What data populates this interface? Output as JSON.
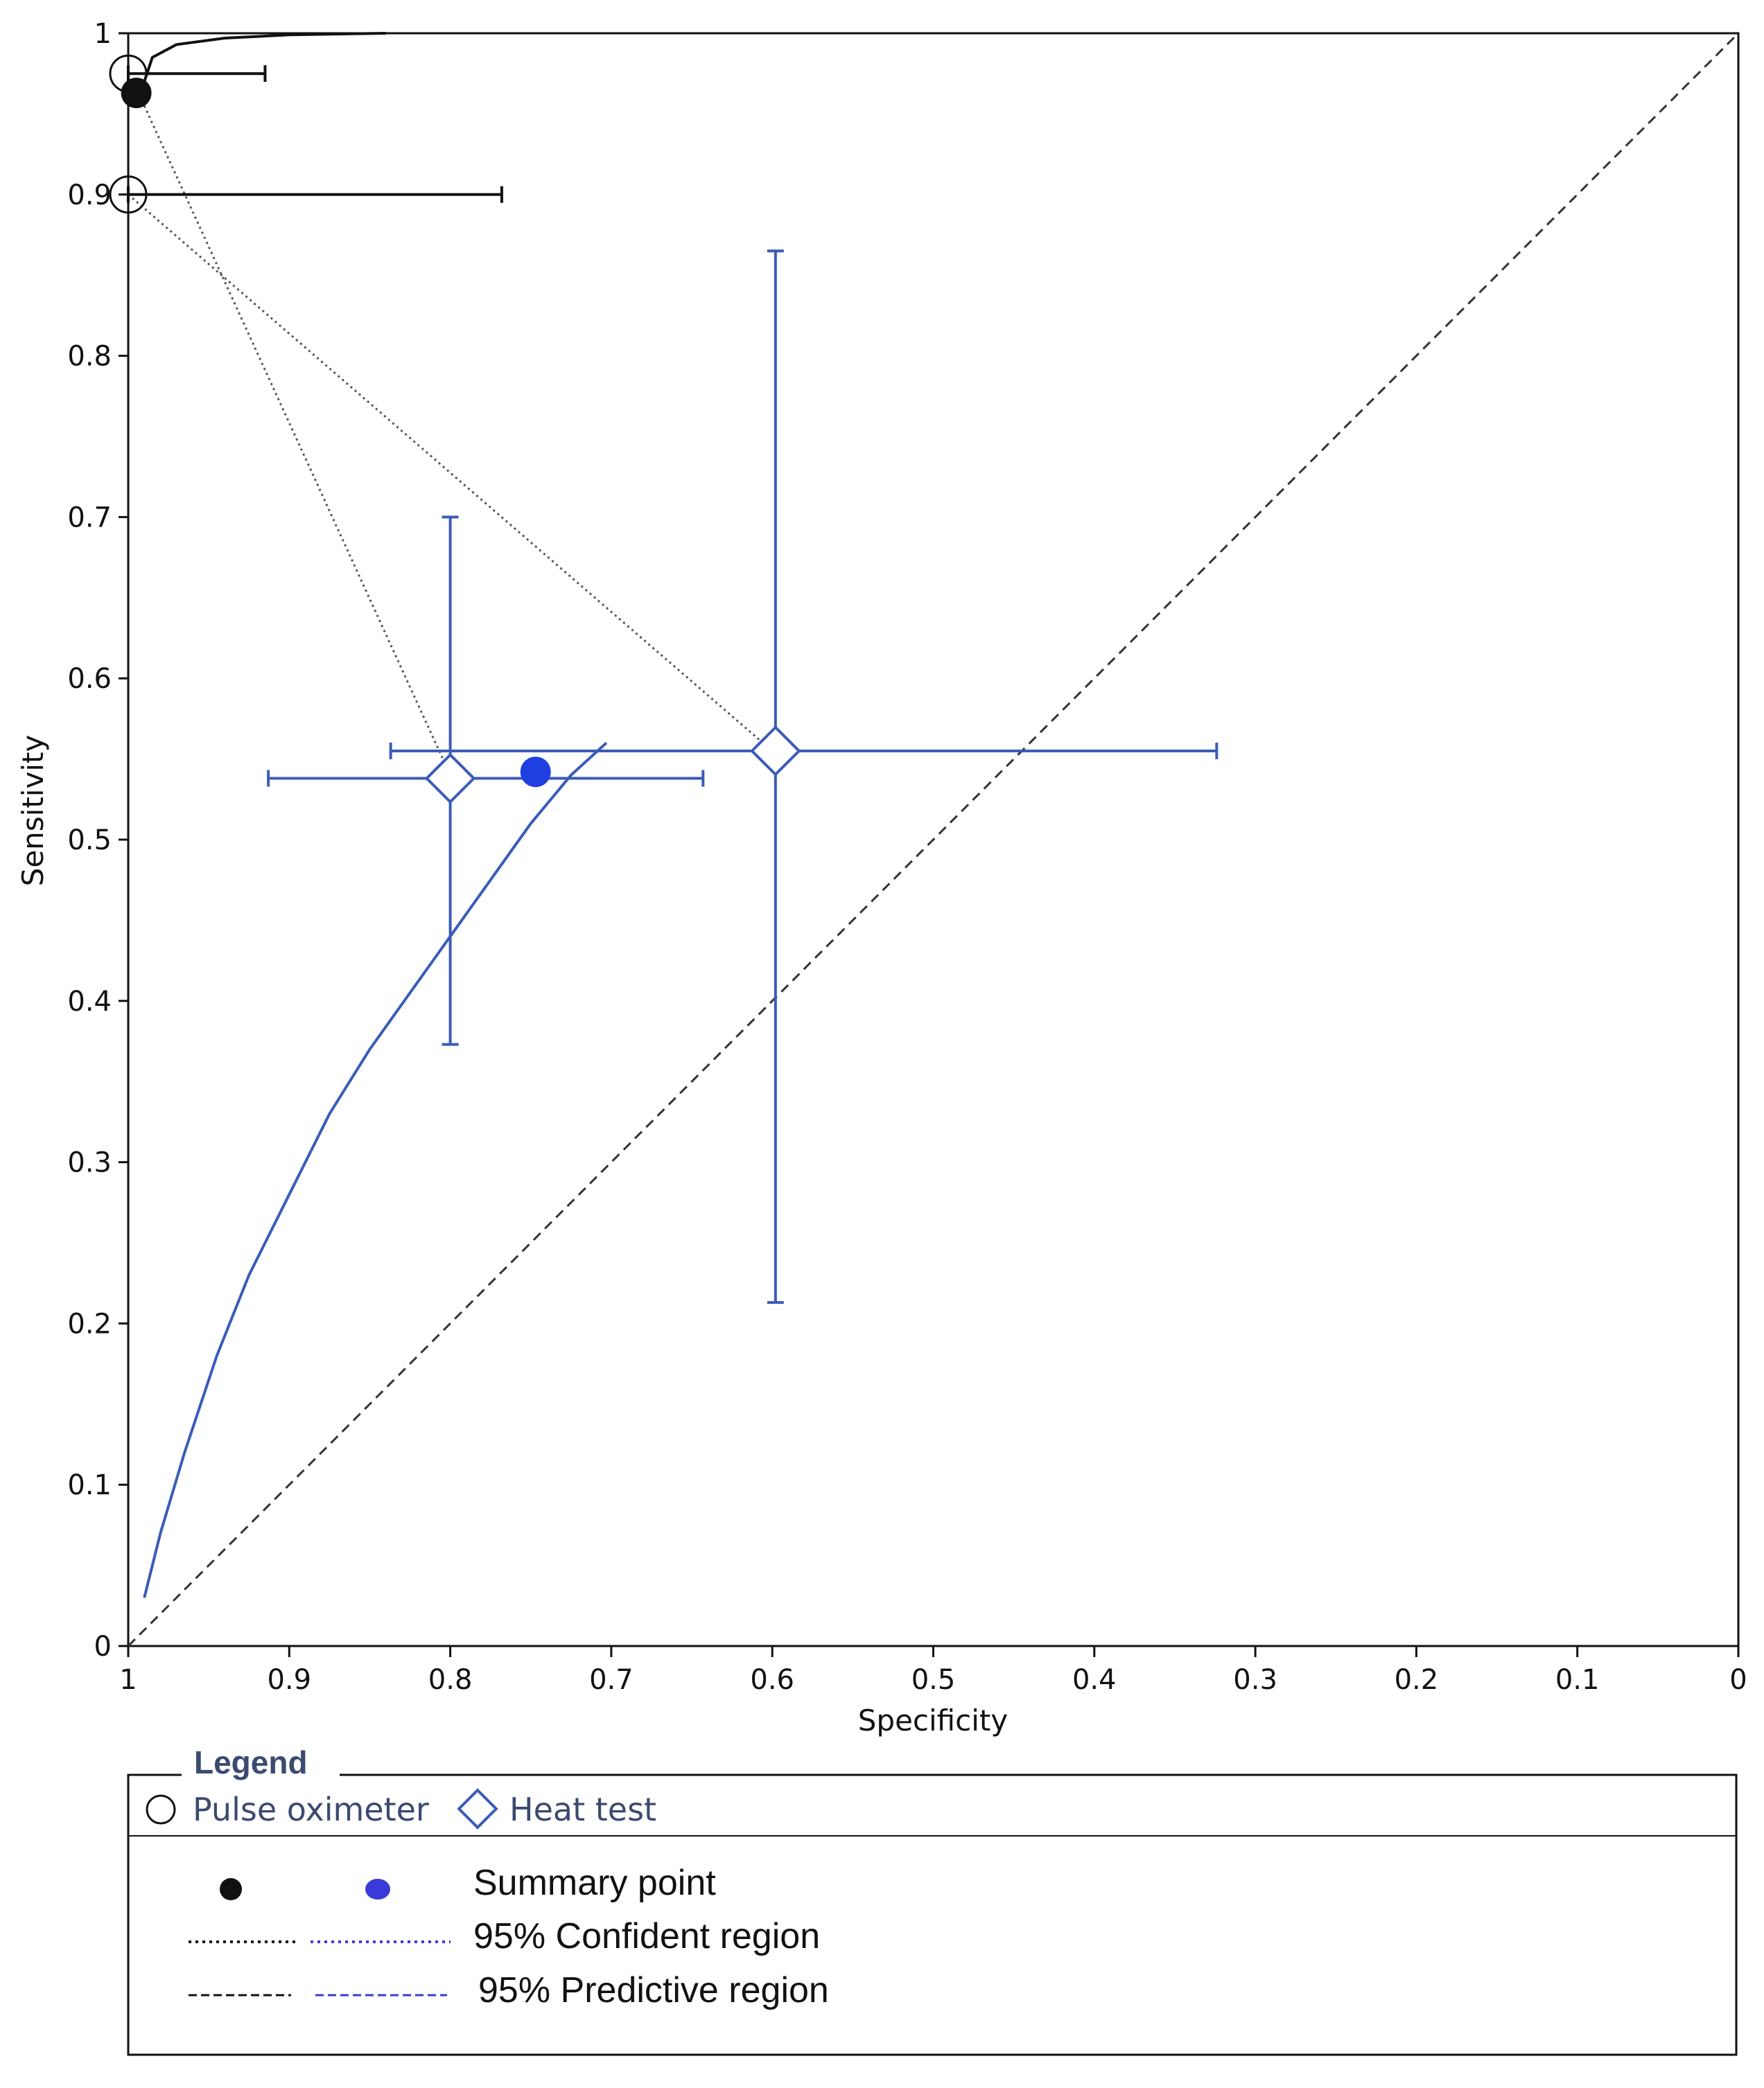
{
  "chart_data": {
    "type": "scatter",
    "xlabel": "Specificity",
    "ylabel": "Sensitivity",
    "xlim": [
      1,
      0
    ],
    "ylim": [
      0,
      1
    ],
    "x_ticks": [
      "1",
      "0.9",
      "0.8",
      "0.7",
      "0.6",
      "0.5",
      "0.4",
      "0.3",
      "0.2",
      "0.1",
      "0"
    ],
    "y_ticks": [
      "0",
      "0.1",
      "0.2",
      "0.3",
      "0.4",
      "0.5",
      "0.6",
      "0.7",
      "0.8",
      "0.9",
      "1"
    ],
    "grid": false,
    "diagonal_line": true,
    "series": [
      {
        "name": "Pulse oximeter",
        "color": "#111111",
        "marker": "circle",
        "studies": [
          {
            "specificity": 1.0,
            "sensitivity": 0.975,
            "spec_ci": [
              0.915,
              1.0
            ]
          },
          {
            "specificity": 1.0,
            "sensitivity": 0.9,
            "spec_ci": [
              0.768,
              1.0
            ]
          }
        ],
        "summary_point": {
          "specificity": 0.995,
          "sensitivity": 0.963
        },
        "sroc_curve": [
          [
            0.99,
            0.97
          ],
          [
            0.985,
            0.985
          ],
          [
            0.97,
            0.993
          ],
          [
            0.94,
            0.997
          ],
          [
            0.9,
            0.999
          ],
          [
            0.84,
            1.0
          ]
        ],
        "confidence_region": [
          [
            0.99,
            0.955
          ],
          [
            0.8,
            0.54
          ]
        ],
        "predictive_region": [
          [
            1.0,
            0.9
          ],
          [
            0.6,
            0.555
          ]
        ]
      },
      {
        "name": "Heat test",
        "color": "#3a5cb8",
        "marker": "diamond",
        "studies": [
          {
            "specificity": 0.8,
            "sensitivity": 0.538,
            "spec_ci": [
              0.643,
              0.913
            ],
            "sens_ci": [
              0.373,
              0.7
            ]
          },
          {
            "specificity": 0.598,
            "sensitivity": 0.555,
            "spec_ci": [
              0.324,
              0.837
            ],
            "sens_ci": [
              0.213,
              0.865
            ]
          }
        ],
        "summary_point": {
          "specificity": 0.747,
          "sensitivity": 0.542
        },
        "sroc_curve": [
          [
            0.99,
            0.03
          ],
          [
            0.98,
            0.07
          ],
          [
            0.965,
            0.12
          ],
          [
            0.945,
            0.18
          ],
          [
            0.925,
            0.23
          ],
          [
            0.9,
            0.28
          ],
          [
            0.875,
            0.33
          ],
          [
            0.85,
            0.37
          ],
          [
            0.825,
            0.405
          ],
          [
            0.8,
            0.44
          ],
          [
            0.775,
            0.475
          ],
          [
            0.75,
            0.51
          ],
          [
            0.725,
            0.54
          ],
          [
            0.703,
            0.56
          ]
        ]
      }
    ]
  },
  "legend": {
    "title": "Legend",
    "entries": [
      {
        "label": "Pulse oximeter",
        "symbol": "circle"
      },
      {
        "label": "Heat test",
        "symbol": "diamond"
      }
    ],
    "summary_label": "Summary point",
    "confidence_label": "95% Confident region",
    "predictive_label": "95% Predictive region",
    "colors": {
      "pulse": "#111111",
      "heat": "#3a3ad8"
    }
  }
}
